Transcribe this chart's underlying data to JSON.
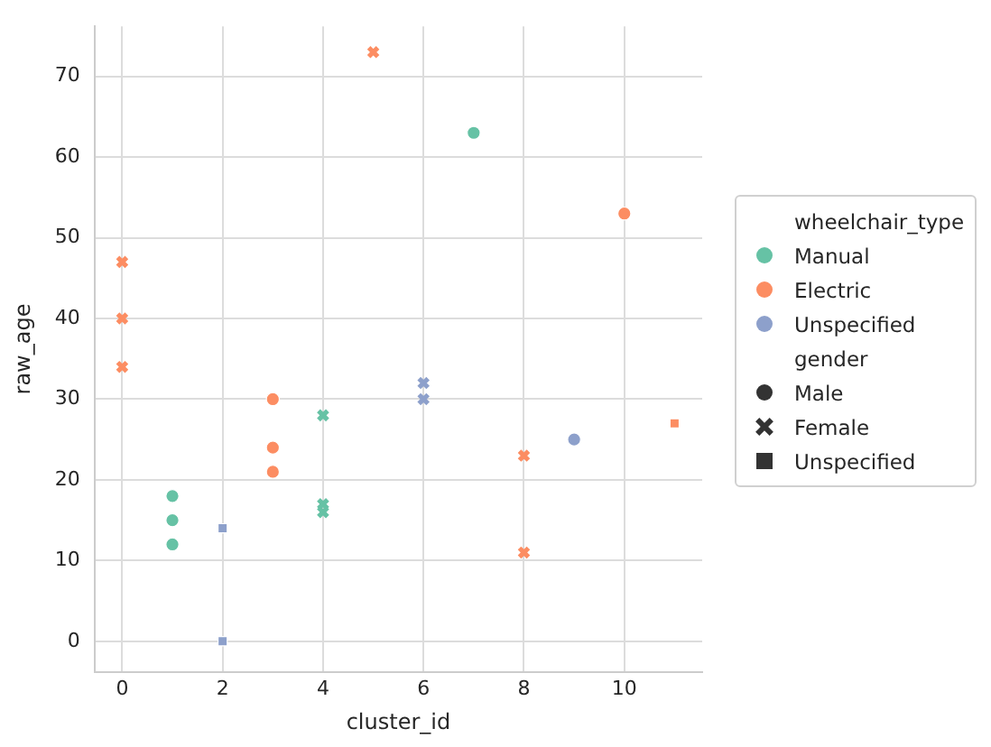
{
  "chart_data": {
    "type": "scatter",
    "xlabel": "cluster_id",
    "ylabel": "raw_age",
    "legend_title": "wheelchair_type",
    "annotations": [
      "gender"
    ],
    "xlim": [
      -0.55,
      11.55
    ],
    "xticks": [
      0,
      2,
      4,
      6,
      8,
      10
    ],
    "ylim": [
      -3.8,
      76.2
    ],
    "yticks": [
      0,
      10,
      20,
      30,
      40,
      50,
      60,
      70
    ],
    "grid": true,
    "legend": "right",
    "series": [
      {
        "name": "Manual",
        "color": "#66c2a5",
        "marker": "circle",
        "x": [
          1,
          1,
          1,
          7
        ],
        "values": [
          18,
          15,
          12,
          63
        ]
      },
      {
        "name": "Electric",
        "color": "#fc8d62",
        "marker": "circle",
        "x": [
          3,
          3,
          3,
          10
        ],
        "values": [
          30,
          24,
          21,
          53
        ]
      },
      {
        "name": "Unspecified",
        "color": "#8da0cb",
        "marker": "circle",
        "x": [
          9
        ],
        "values": [
          25
        ]
      },
      {
        "color": "#66c2a5",
        "marker": "cross",
        "x": [
          4,
          4,
          4
        ],
        "values": [
          28,
          17,
          16
        ]
      },
      {
        "color": "#fc8d62",
        "marker": "cross",
        "x": [
          0,
          0,
          0,
          5,
          8,
          8
        ],
        "values": [
          47,
          40,
          34,
          73,
          23,
          11
        ]
      },
      {
        "color": "#8da0cb",
        "marker": "cross",
        "x": [
          6,
          6
        ],
        "values": [
          32,
          30
        ]
      },
      {
        "color": "#fc8d62",
        "marker": "square",
        "x": [
          11
        ],
        "values": [
          27
        ]
      },
      {
        "color": "#8da0cb",
        "marker": "square",
        "x": [
          2,
          2
        ],
        "values": [
          14,
          0
        ]
      },
      {
        "name": "Male",
        "color": "#333333",
        "marker": "circle"
      },
      {
        "name": "Female",
        "color": "#333333",
        "marker": "cross"
      },
      {
        "name": "Unspecified",
        "color": "#333333",
        "marker": "square"
      }
    ]
  }
}
